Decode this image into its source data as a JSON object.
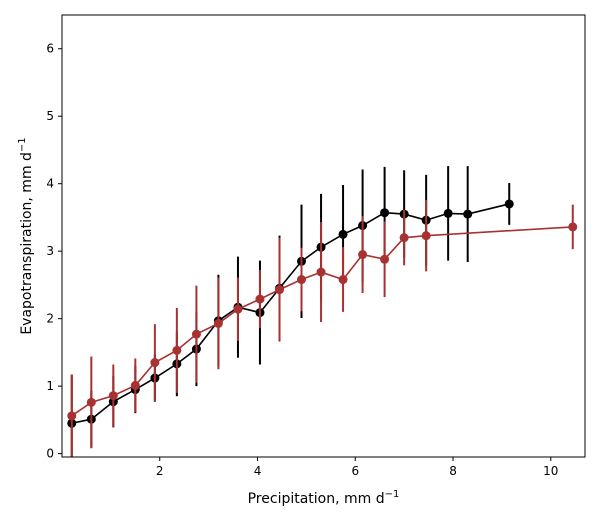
{
  "chart_data": {
    "type": "line",
    "xlabel": "Precipitation,  mm d",
    "xlabel_unit_exponent": "−1",
    "ylabel": "Evapotranspiration,  mm d",
    "ylabel_unit_exponent": "−1",
    "xlim": [
      0.0,
      10.7
    ],
    "ylim": [
      -0.05,
      6.5
    ],
    "xticks": [
      2,
      4,
      6,
      8,
      10
    ],
    "yticks": [
      0,
      1,
      2,
      3,
      4,
      5,
      6
    ],
    "grid": false,
    "legend": "none",
    "series": [
      {
        "color": "#000000",
        "points": [
          {
            "x": 0.2,
            "y": 0.45,
            "err": 0.72
          },
          {
            "x": 0.6,
            "y": 0.51,
            "err": 0.42
          },
          {
            "x": 1.05,
            "y": 0.77,
            "err": 0.38
          },
          {
            "x": 1.5,
            "y": 0.95,
            "err": 0.35
          },
          {
            "x": 1.9,
            "y": 1.12,
            "err": 0.35
          },
          {
            "x": 2.35,
            "y": 1.33,
            "err": 0.48
          },
          {
            "x": 2.75,
            "y": 1.55,
            "err": 0.55
          },
          {
            "x": 3.2,
            "y": 1.97,
            "err": 0.68
          },
          {
            "x": 3.6,
            "y": 2.17,
            "err": 0.75
          },
          {
            "x": 4.05,
            "y": 2.09,
            "err": 0.77
          },
          {
            "x": 4.45,
            "y": 2.45,
            "err": 0.78
          },
          {
            "x": 4.9,
            "y": 2.85,
            "err": 0.84
          },
          {
            "x": 5.3,
            "y": 3.06,
            "err": 0.79
          },
          {
            "x": 5.75,
            "y": 3.25,
            "err": 0.73
          },
          {
            "x": 6.15,
            "y": 3.38,
            "err": 0.83
          },
          {
            "x": 6.6,
            "y": 3.57,
            "err": 0.68
          },
          {
            "x": 7.0,
            "y": 3.55,
            "err": 0.65
          },
          {
            "x": 7.45,
            "y": 3.46,
            "err": 0.67
          },
          {
            "x": 7.9,
            "y": 3.56,
            "err": 0.7
          },
          {
            "x": 8.3,
            "y": 3.55,
            "err": 0.71
          },
          {
            "x": 9.15,
            "y": 3.7,
            "err": 0.31
          }
        ]
      },
      {
        "color": "#a83232",
        "points": [
          {
            "x": 0.2,
            "y": 0.56,
            "err": 0.61
          },
          {
            "x": 0.6,
            "y": 0.76,
            "err": 0.68
          },
          {
            "x": 1.05,
            "y": 0.86,
            "err": 0.46
          },
          {
            "x": 1.5,
            "y": 1.01,
            "err": 0.4
          },
          {
            "x": 1.9,
            "y": 1.35,
            "err": 0.57
          },
          {
            "x": 2.35,
            "y": 1.53,
            "err": 0.63
          },
          {
            "x": 2.75,
            "y": 1.77,
            "err": 0.72
          },
          {
            "x": 3.2,
            "y": 1.93,
            "err": 0.68
          },
          {
            "x": 3.6,
            "y": 2.14,
            "err": 0.47
          },
          {
            "x": 4.05,
            "y": 2.29,
            "err": 0.43
          },
          {
            "x": 4.45,
            "y": 2.43,
            "err": 0.77
          },
          {
            "x": 4.9,
            "y": 2.58,
            "err": 0.47
          },
          {
            "x": 5.3,
            "y": 2.69,
            "err": 0.74
          },
          {
            "x": 5.75,
            "y": 2.58,
            "err": 0.48
          },
          {
            "x": 6.15,
            "y": 2.95,
            "err": 0.57
          },
          {
            "x": 6.6,
            "y": 2.88,
            "err": 0.56
          },
          {
            "x": 7.0,
            "y": 3.2,
            "err": 0.41
          },
          {
            "x": 7.45,
            "y": 3.23,
            "err": 0.53
          },
          {
            "x": 10.45,
            "y": 3.36,
            "err": 0.33
          }
        ]
      }
    ]
  }
}
